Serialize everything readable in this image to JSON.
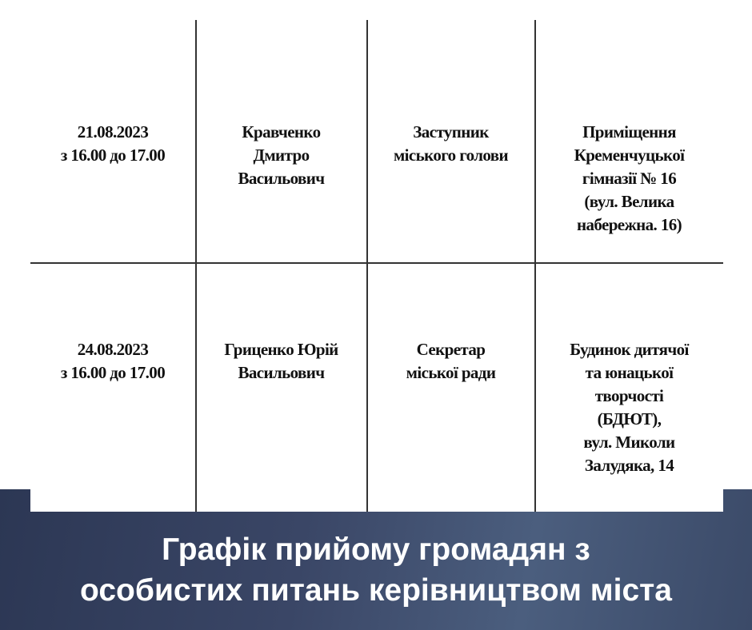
{
  "table": {
    "rows": [
      {
        "date": [
          "21.08.2023",
          "з 16.00 до 17.00"
        ],
        "name": [
          "Кравченко",
          "Дмитро",
          "Васильович"
        ],
        "position": [
          "Заступник",
          "міського голови"
        ],
        "place": [
          "Приміщення",
          "Кременчуцької",
          "гімназії № 16",
          "(вул. Велика",
          "набережна. 16)"
        ]
      },
      {
        "date": [
          "24.08.2023",
          "з 16.00 до 17.00"
        ],
        "name": [
          "Гриценко Юрій",
          "Васильович"
        ],
        "position": [
          "Секретар",
          "міської ради"
        ],
        "place": [
          "Будинок дитячої",
          "та юнацької",
          "творчості",
          "(БДЮТ),",
          "вул. Миколи",
          "Залудяка, 14"
        ]
      }
    ]
  },
  "caption": [
    "Графік прийому громадян з",
    "особистих питань керівництвом міста"
  ],
  "colors": {
    "band": "#3a4666",
    "caption_text": "#ffffff"
  }
}
